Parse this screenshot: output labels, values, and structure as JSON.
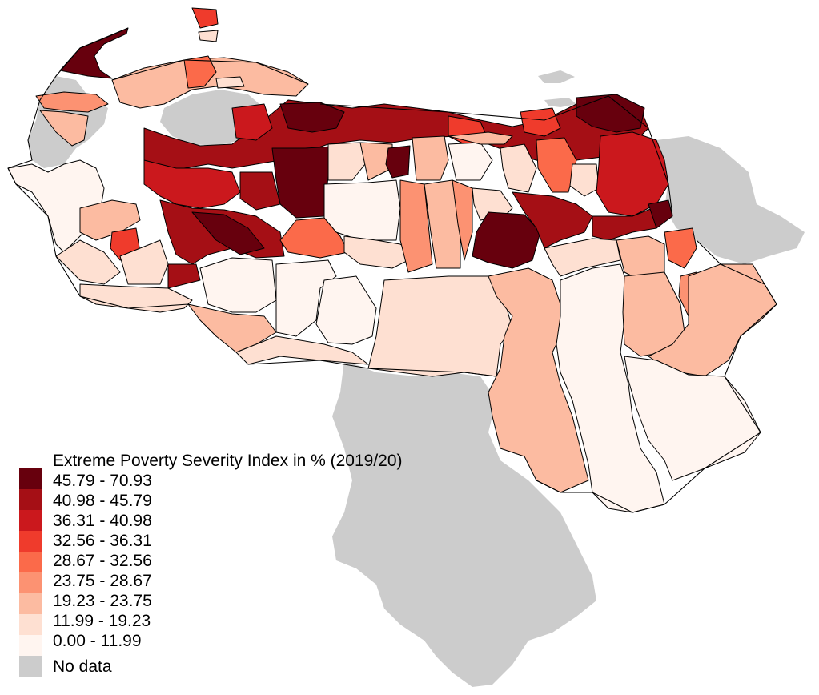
{
  "map": {
    "legend": {
      "title": "Extreme Poverty Severity Index in % (2019/20)",
      "classes": [
        {
          "label": "45.79 - 70.93",
          "color": "#67000d"
        },
        {
          "label": "40.98 - 45.79",
          "color": "#a50f15"
        },
        {
          "label": "36.31 - 40.98",
          "color": "#cb181d"
        },
        {
          "label": "32.56 - 36.31",
          "color": "#ef3b2c"
        },
        {
          "label": "28.67 - 32.56",
          "color": "#fb6a4a"
        },
        {
          "label": "23.75 - 28.67",
          "color": "#fc9272"
        },
        {
          "label": "19.23 - 23.75",
          "color": "#fcbba1"
        },
        {
          "label": "11.99 - 19.23",
          "color": "#fee0d2"
        },
        {
          "label": "0.00 - 11.99",
          "color": "#fff5f0"
        },
        {
          "label": "No data",
          "color": "#cccccc"
        }
      ]
    }
  }
}
